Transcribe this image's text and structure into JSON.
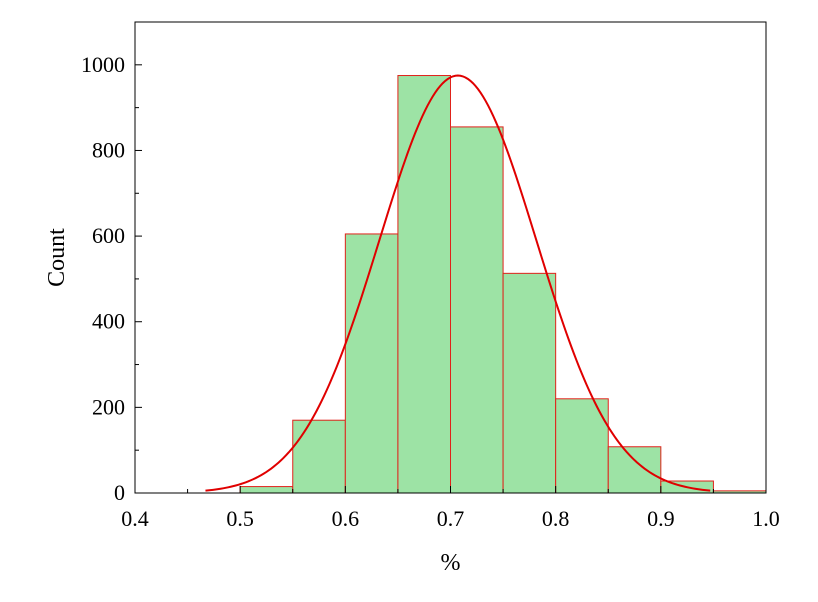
{
  "chart_data": {
    "type": "bar",
    "title": "",
    "xlabel": "%",
    "ylabel": "Count",
    "xlim": [
      0.4,
      1.0
    ],
    "ylim": [
      0,
      1100
    ],
    "x_ticks": [
      0.4,
      0.5,
      0.6,
      0.7,
      0.8,
      0.9,
      1.0
    ],
    "x_tick_labels": [
      "0.4",
      "0.5",
      "0.6",
      "0.7",
      "0.8",
      "0.9",
      "1.0"
    ],
    "y_ticks": [
      0,
      200,
      400,
      600,
      800,
      1000
    ],
    "y_tick_labels": [
      "0",
      "200",
      "400",
      "600",
      "800",
      "1000"
    ],
    "bin_width": 0.05,
    "bins": [
      {
        "x0": 0.5,
        "x1": 0.55,
        "value": 15
      },
      {
        "x0": 0.55,
        "x1": 0.6,
        "value": 170
      },
      {
        "x0": 0.6,
        "x1": 0.65,
        "value": 605
      },
      {
        "x0": 0.65,
        "x1": 0.7,
        "value": 975
      },
      {
        "x0": 0.7,
        "x1": 0.75,
        "value": 855
      },
      {
        "x0": 0.75,
        "x1": 0.8,
        "value": 513
      },
      {
        "x0": 0.8,
        "x1": 0.85,
        "value": 220
      },
      {
        "x0": 0.85,
        "x1": 0.9,
        "value": 108
      },
      {
        "x0": 0.9,
        "x1": 0.95,
        "value": 28
      },
      {
        "x0": 0.95,
        "x1": 1.0,
        "value": 5
      }
    ],
    "fit_curve": {
      "type": "normal",
      "mean": 0.707,
      "sd": 0.0745,
      "peak": 975,
      "x_range": [
        0.467,
        0.947
      ]
    },
    "grid": false,
    "colors": {
      "bar_fill": "#9de3a5",
      "bar_edge": "#e0221a",
      "curve": "#e00000",
      "axis": "#000000"
    }
  }
}
